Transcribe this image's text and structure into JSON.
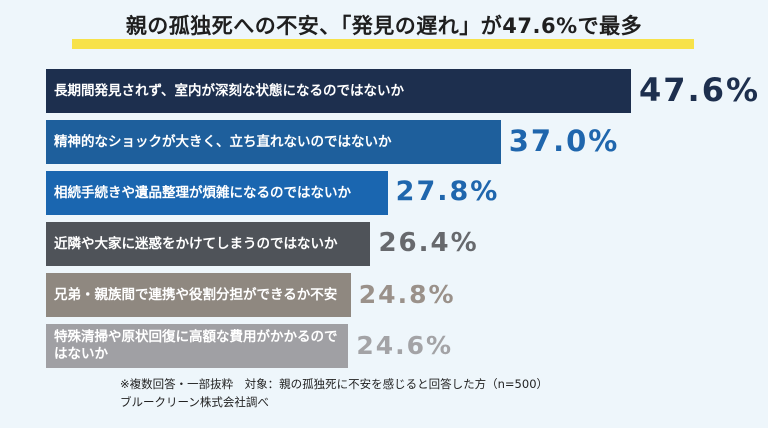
{
  "header": {
    "title": "親の孤独死への不安、「発見の遅れ」が47.6%で最多"
  },
  "chart_data": {
    "type": "bar",
    "orientation": "horizontal",
    "categories": [
      "長期間発見されず、室内が深刻な状態になるのではないか",
      "精神的なショックが大きく、立ち直れないのではないか",
      "相続手続きや遺品整理が煩雑になるのではないか",
      "近隣や大家に迷惑をかけてしまうのではないか",
      "兄弟・親族間で連携や役割分担ができるか不安",
      "特殊清掃や原状回復に高額な費用がかかるのではないか"
    ],
    "values": [
      47.6,
      37.0,
      27.8,
      26.4,
      24.8,
      24.6
    ],
    "value_labels": [
      "47.6%",
      "37.0%",
      "27.8%",
      "26.4%",
      "24.8%",
      "24.6%"
    ],
    "bar_colors": [
      "#1d2f4e",
      "#1e5f9c",
      "#1a66b0",
      "#4f5359",
      "#8f8880",
      "#a0a0a4"
    ],
    "label_colors": [
      "#1d2f4e",
      "#1f66ad",
      "#1f66ad",
      "#67696d",
      "#9a918a",
      "#a3a3a6"
    ]
  },
  "footnote": {
    "line1": "※複数回答・一部抜粋　対象：親の孤独死に不安を感じると回答した方（n=500）",
    "line2": "ブルークリーン株式会社調べ"
  }
}
